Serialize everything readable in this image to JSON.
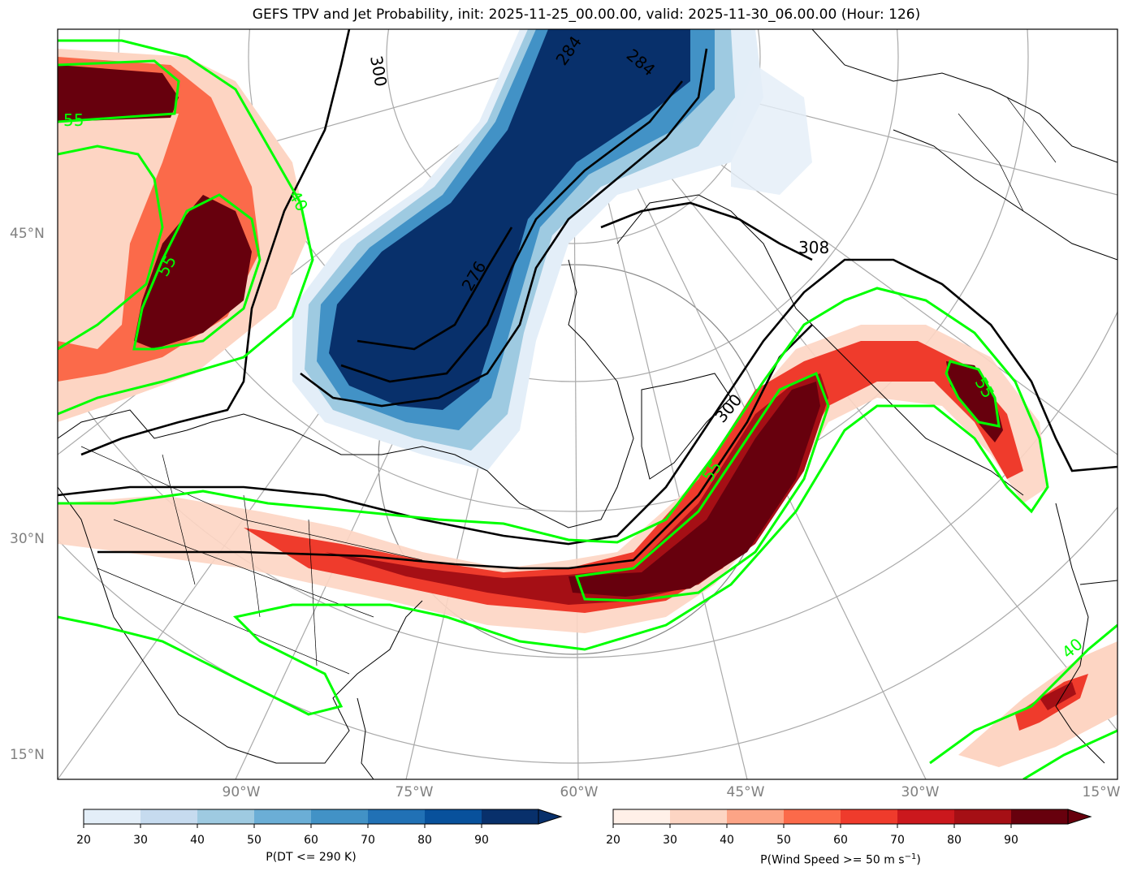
{
  "title": "GEFS TPV and Jet Probability, init: 2025-11-25_00.00.00, valid: 2025-11-30_06.00.00 (Hour: 126)",
  "lat_labels": [
    "45°N",
    "30°N",
    "15°N"
  ],
  "lon_labels": [
    "90°W",
    "75°W",
    "60°W",
    "45°W",
    "30°W",
    "15°W"
  ],
  "contour_labels": {
    "theta": [
      "308",
      "300",
      "284",
      "284",
      "276",
      "300"
    ],
    "jet": [
      "55",
      "55",
      "55",
      "55",
      "40",
      "40"
    ]
  },
  "colorbar_dt": {
    "label": "P(DT <= 290 K)",
    "ticks": [
      "20",
      "30",
      "40",
      "50",
      "60",
      "70",
      "80",
      "90"
    ],
    "colors": [
      "#e3eef8",
      "#c6dbef",
      "#9ecae1",
      "#6baed6",
      "#4292c6",
      "#2171b5",
      "#08519c",
      "#08306b"
    ]
  },
  "colorbar_wind": {
    "label_prefix": "P(Wind Speed >= 50 m s",
    "label_sup": "−1",
    "label_suffix": ")",
    "ticks": [
      "20",
      "30",
      "40",
      "50",
      "60",
      "70",
      "80",
      "90"
    ],
    "colors": [
      "#fff0e8",
      "#fdd5c3",
      "#fca486",
      "#fb6a4a",
      "#ef3b2c",
      "#cb181d",
      "#a50f15",
      "#67000d"
    ]
  },
  "colors": {
    "jet_contour": "#00ff00",
    "theta_contour": "#000000",
    "graticule": "#aaaaaa"
  }
}
